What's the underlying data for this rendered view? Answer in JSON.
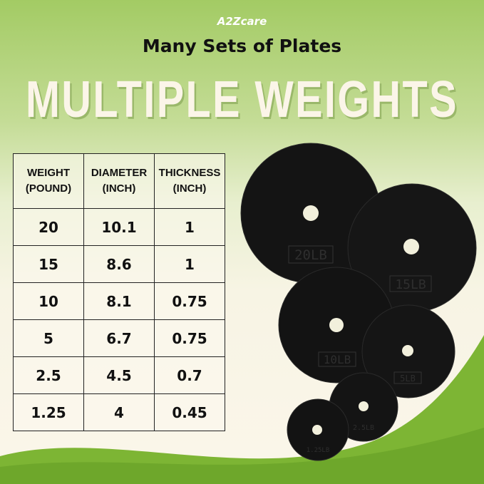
{
  "brand": "A2Zcare",
  "subtitle": "Many Sets of Plates",
  "title": "MULTIPLE WEIGHTS",
  "table": {
    "headers": [
      [
        "WEIGHT",
        "(POUND)"
      ],
      [
        "DIAMETER",
        "(INCH)"
      ],
      [
        "THICKNESS",
        "(INCH)"
      ]
    ],
    "rows": [
      [
        "20",
        "10.1",
        "1"
      ],
      [
        "15",
        "8.6",
        "1"
      ],
      [
        "10",
        "8.1",
        "0.75"
      ],
      [
        "5",
        "6.7",
        "0.75"
      ],
      [
        "2.5",
        "4.5",
        "0.7"
      ],
      [
        "1.25",
        "4",
        "0.45"
      ]
    ]
  },
  "plates": [
    "20LB",
    "15LB",
    "10LB",
    "5LB",
    "2.5LB",
    "1.25LB"
  ],
  "colors": {
    "green": "#7db534",
    "cream": "#fbf6ea",
    "plate": "#141414"
  }
}
